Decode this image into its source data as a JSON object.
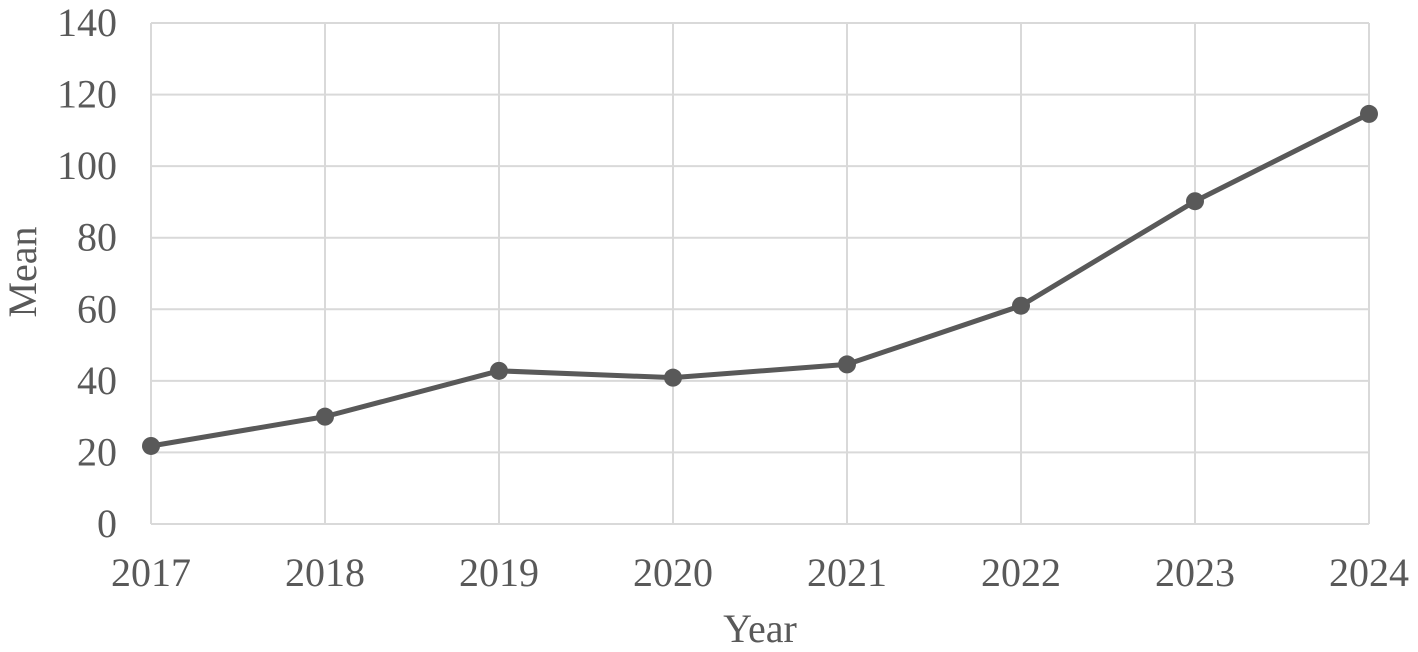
{
  "chart_data": {
    "type": "line",
    "title": "",
    "xlabel": "Year",
    "ylabel": "Mean",
    "categories": [
      "2017",
      "2018",
      "2019",
      "2020",
      "2021",
      "2022",
      "2023",
      "2024"
    ],
    "series": [
      {
        "values": [
          21.8,
          30.0,
          42.8,
          40.9,
          44.6,
          61.0,
          90.2,
          114.6
        ]
      }
    ],
    "ylim": [
      0,
      140
    ],
    "yticks": [
      "0",
      "20",
      "40",
      "60",
      "80",
      "100",
      "120",
      "140"
    ],
    "grid": true,
    "legend": "none",
    "colors": {
      "line": "#595959",
      "grid": "#d9d9d9",
      "text": "#595959"
    }
  }
}
